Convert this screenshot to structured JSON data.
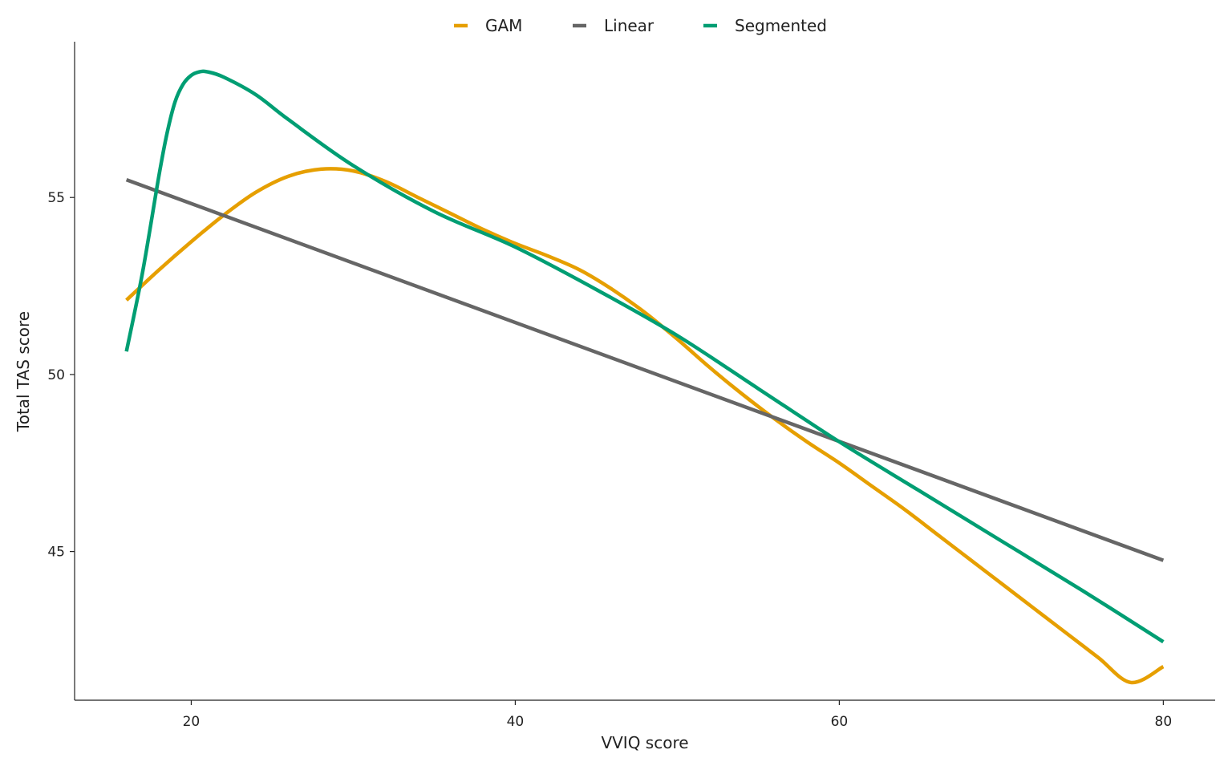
{
  "chart_data": {
    "type": "line",
    "xlabel": "VVIQ score",
    "ylabel": "Total TAS score",
    "xlim": [
      12.8,
      83.2
    ],
    "ylim": [
      40.8,
      59.4
    ],
    "x_ticks": [
      "20",
      "40",
      "60",
      "80"
    ],
    "y_ticks": [
      "45",
      "50",
      "55"
    ],
    "legend_position": "top",
    "series": [
      {
        "name": "GAM",
        "color": "#E69F00",
        "x": [
          16,
          18,
          20,
          22,
          24,
          26,
          28,
          30,
          32,
          34,
          36,
          38,
          40,
          42,
          44,
          46,
          48,
          50,
          52,
          54,
          56,
          58,
          60,
          62,
          64,
          66,
          68,
          70,
          72,
          74,
          76,
          78,
          80
        ],
        "y": [
          52.1,
          52.95,
          53.75,
          54.5,
          55.15,
          55.6,
          55.8,
          55.75,
          55.45,
          55.0,
          54.55,
          54.1,
          53.7,
          53.35,
          52.95,
          52.4,
          51.75,
          51.0,
          50.2,
          49.45,
          48.75,
          48.1,
          47.5,
          46.85,
          46.2,
          45.5,
          44.8,
          44.1,
          43.4,
          42.7,
          42.0,
          41.3,
          41.75
        ]
      },
      {
        "name": "Linear",
        "color": "#666666",
        "x": [
          16,
          80
        ],
        "y": [
          55.5,
          44.75
        ]
      },
      {
        "name": "Segmented",
        "color": "#009E73",
        "x": [
          16,
          17,
          18,
          18.5,
          19,
          19.5,
          20,
          20.5,
          21,
          22,
          24,
          26,
          30,
          35,
          40,
          45,
          50,
          55,
          60,
          65,
          70,
          75,
          80
        ],
        "y": [
          50.65,
          52.9,
          55.6,
          56.8,
          57.7,
          58.2,
          58.45,
          58.55,
          58.55,
          58.4,
          57.9,
          57.2,
          55.9,
          54.6,
          53.6,
          52.4,
          51.1,
          49.6,
          48.1,
          46.7,
          45.3,
          43.9,
          42.45
        ]
      }
    ]
  }
}
